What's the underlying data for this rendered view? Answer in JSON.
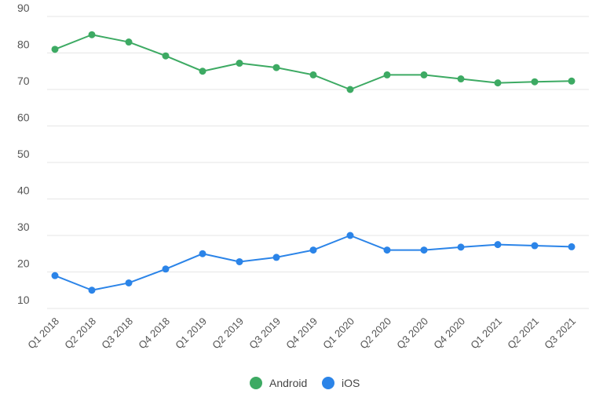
{
  "chart_data": {
    "type": "line",
    "categories": [
      "Q1 2018",
      "Q2 2018",
      "Q3 2018",
      "Q4 2018",
      "Q1 2019",
      "Q2 2019",
      "Q3 2019",
      "Q4 2019",
      "Q1 2020",
      "Q2 2020",
      "Q3 2020",
      "Q4 2020",
      "Q1 2021",
      "Q2 2021",
      "Q3 2021"
    ],
    "series": [
      {
        "name": "Android",
        "color": "#3daa63",
        "values": [
          81,
          85,
          83,
          79.2,
          75,
          77.2,
          76,
          74,
          70,
          74,
          74,
          72.9,
          71.8,
          72.1,
          72.3
        ]
      },
      {
        "name": "iOS",
        "color": "#2b84e8",
        "values": [
          19,
          15,
          17,
          20.8,
          25,
          22.8,
          24,
          26,
          30,
          26,
          26,
          26.8,
          27.5,
          27.2,
          26.9
        ]
      }
    ],
    "yticks": [
      10,
      20,
      30,
      40,
      50,
      60,
      70,
      80,
      90
    ],
    "ylim": [
      10,
      90
    ],
    "grid": true,
    "legend_position": "bottom-center"
  }
}
